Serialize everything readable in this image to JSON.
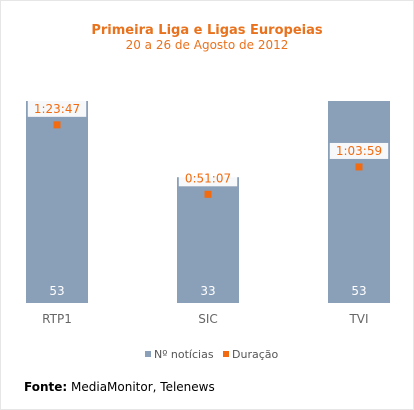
{
  "title": "Primeira Liga e Ligas Europeias",
  "subtitle": "20 a 26 de Agosto de 2012",
  "source_label": "Fonte:",
  "source_text": "MediaMonitor, Telenews",
  "colors": {
    "bar": "#8a9fb8",
    "marker": "#f26b10",
    "title": "#e8721d",
    "axis_text": "#666666"
  },
  "chart_data": {
    "type": "bar",
    "categories": [
      "RTP1",
      "SIC",
      "TVI"
    ],
    "series": [
      {
        "name": "Nº notícias",
        "values": [
          53,
          33,
          53
        ],
        "labels": [
          "53",
          "33",
          "53"
        ]
      },
      {
        "name": "Duração",
        "values_seconds": [
          5027,
          3067,
          3839
        ],
        "labels": [
          "1:23:47",
          "0:51:07",
          "1:03:59"
        ]
      }
    ],
    "ylim_count": [
      0,
      53
    ],
    "ylim_duration_seconds": [
      0,
      5700
    ],
    "legend_position": "bottom",
    "grid": false
  }
}
